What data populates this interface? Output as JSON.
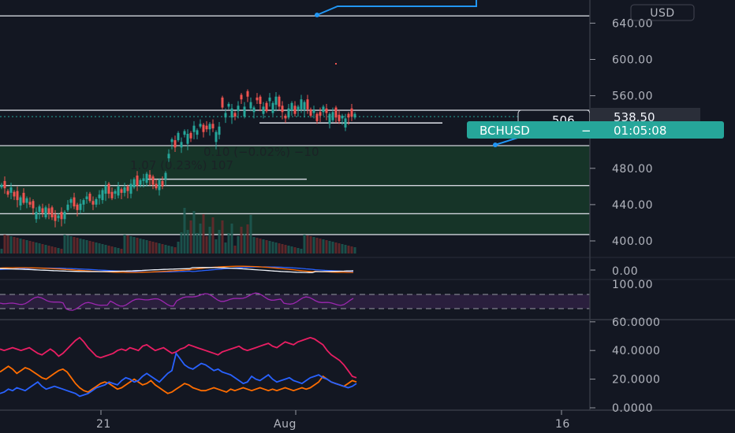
{
  "chart_data": [
    {
      "type": "candlestick",
      "symbol": "BCHUSD",
      "currency": "USD",
      "last_price": "538.50",
      "countdown": "01:05:08",
      "ylim": [
        380,
        660
      ],
      "y_ticks": [
        "640.00",
        "600.00",
        "560.00",
        "520.00",
        "480.00",
        "440.00",
        "400.00"
      ],
      "x_ticks": [
        "21",
        "Aug",
        "16"
      ],
      "horizontal_levels": [
        648,
        544,
        505,
        461,
        430,
        407
      ],
      "zone": {
        "low": 407,
        "high": 505
      },
      "segments": [
        {
          "price": 530,
          "from": 0.44,
          "to": 0.75
        },
        {
          "price": 468,
          "from": 0.25,
          "to": 0.52
        }
      ],
      "dotted_level": 537,
      "bulls": [
        1,
        0,
        0,
        1,
        0,
        0,
        1,
        0,
        1,
        0,
        0,
        1,
        1,
        0,
        1,
        0,
        0,
        0,
        1,
        0,
        1,
        1,
        1,
        0,
        0,
        1,
        1,
        1,
        0,
        0,
        1,
        1,
        1,
        1,
        0,
        0,
        1,
        1,
        0,
        1,
        0,
        1,
        1,
        0,
        1,
        1,
        1,
        0,
        0,
        0,
        1,
        0,
        1,
        1,
        1,
        0,
        1,
        1,
        1,
        1,
        0,
        1,
        1,
        1,
        0,
        0,
        1,
        0,
        1,
        1,
        0,
        1,
        1,
        1,
        0,
        1,
        0,
        1,
        0,
        1,
        1,
        0,
        0,
        1,
        0,
        1,
        1,
        1,
        0,
        0,
        0,
        1,
        1,
        0,
        1,
        1,
        1,
        0,
        0,
        1,
        0,
        0,
        1,
        0,
        1,
        1,
        0,
        0,
        1,
        1,
        0,
        0,
        1
      ],
      "closes": [
        462,
        458,
        451,
        459,
        449,
        445,
        448,
        442,
        447,
        440,
        436,
        432,
        438,
        431,
        437,
        430,
        426,
        422,
        428,
        424,
        432,
        440,
        446,
        438,
        434,
        441,
        445,
        449,
        444,
        440,
        446,
        451,
        456,
        461,
        452,
        447,
        455,
        460,
        453,
        459,
        455,
        463,
        468,
        461,
        467,
        469,
        474,
        469,
        462,
        458,
        467,
        460,
        475,
        496,
        512,
        503,
        519,
        509,
        521,
        518,
        513,
        527,
        522,
        529,
        520,
        523,
        529,
        524,
        520,
        526,
        547,
        541,
        551,
        546,
        537,
        549,
        556,
        548,
        559,
        553,
        547,
        555,
        551,
        548,
        543,
        558,
        552,
        559,
        548,
        542,
        535,
        546,
        552,
        540,
        548,
        556,
        553,
        545,
        538,
        544,
        532,
        538,
        548,
        541,
        540,
        542,
        536,
        532,
        538,
        535,
        536,
        537,
        540
      ]
    },
    {
      "type": "line",
      "name": "oscillator",
      "y_ticks": [
        "0.00"
      ],
      "series": [
        {
          "color": "#2962ff"
        },
        {
          "color": "#ff6d00"
        },
        {
          "color": "#f0f3fa"
        }
      ]
    },
    {
      "type": "line",
      "name": "rsi",
      "y_ticks": [
        "100.00"
      ],
      "ylim": [
        0,
        100
      ],
      "series": [
        {
          "color": "#9c27b0"
        }
      ]
    },
    {
      "type": "line",
      "name": "dmi",
      "ylim": [
        0,
        60
      ],
      "y_ticks": [
        "60.0000",
        "40.0000",
        "20.0000",
        "0.0000"
      ],
      "series": [
        {
          "color": "#e91e63",
          "values": [
            41,
            40,
            41,
            42,
            41,
            40,
            41,
            42,
            40,
            38,
            37,
            39,
            41,
            39,
            36,
            38,
            41,
            44,
            47,
            49,
            46,
            42,
            39,
            36,
            35,
            36,
            37,
            38,
            40,
            41,
            40,
            42,
            41,
            40,
            43,
            44,
            42,
            40,
            41,
            42,
            40,
            38,
            39,
            41,
            42,
            44,
            43,
            42,
            41,
            40,
            39,
            38,
            37,
            39,
            40,
            41,
            42,
            43,
            41,
            40,
            41,
            42,
            43,
            44,
            45,
            43,
            42,
            44,
            46,
            45,
            44,
            46,
            47,
            48,
            49,
            48,
            46,
            44,
            40,
            37,
            35,
            33,
            30,
            26,
            22,
            21
          ]
        },
        {
          "color": "#ff6d00",
          "values": [
            25,
            27,
            29,
            27,
            24,
            26,
            28,
            27,
            25,
            23,
            21,
            20,
            22,
            24,
            26,
            27,
            25,
            21,
            17,
            14,
            12,
            11,
            13,
            15,
            17,
            18,
            17,
            15,
            13,
            14,
            16,
            18,
            20,
            18,
            16,
            17,
            19,
            16,
            14,
            12,
            10,
            11,
            13,
            15,
            17,
            16,
            14,
            13,
            12,
            12,
            13,
            14,
            13,
            12,
            11,
            13,
            12,
            13,
            14,
            13,
            12,
            13,
            14,
            13,
            12,
            13,
            12,
            13,
            14,
            13,
            12,
            13,
            14,
            13,
            14,
            16,
            18,
            22,
            20,
            18,
            17,
            16,
            15,
            17,
            19,
            18
          ]
        },
        {
          "color": "#2962ff",
          "values": [
            10,
            11,
            13,
            12,
            14,
            13,
            12,
            14,
            16,
            18,
            15,
            13,
            14,
            15,
            14,
            13,
            12,
            11,
            10,
            8,
            9,
            10,
            12,
            14,
            15,
            16,
            18,
            17,
            16,
            19,
            21,
            20,
            18,
            19,
            22,
            24,
            22,
            20,
            18,
            21,
            24,
            26,
            38,
            34,
            30,
            28,
            27,
            29,
            31,
            30,
            28,
            26,
            27,
            25,
            24,
            23,
            21,
            19,
            17,
            18,
            22,
            20,
            19,
            21,
            23,
            20,
            18,
            19,
            20,
            21,
            19,
            18,
            17,
            19,
            21,
            22,
            23,
            21,
            20,
            18,
            17,
            16,
            15,
            14,
            15,
            17
          ]
        }
      ]
    }
  ]
}
